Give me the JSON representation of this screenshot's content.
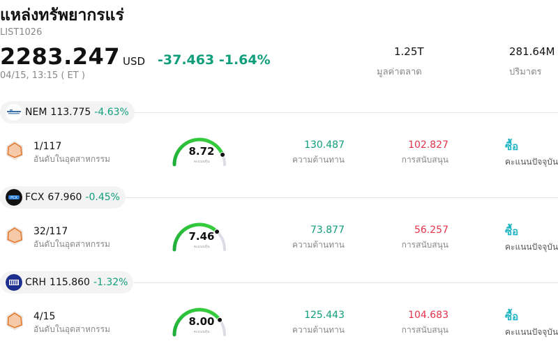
{
  "header": {
    "title": "แหล่งทรัพยากรแร่",
    "code": "LIST1026",
    "price": "2283.247",
    "currency": "USD",
    "change": "-37.463",
    "change_pct": "-1.64%",
    "timestamp": "04/15, 13:15  ( ET )",
    "market_cap_value": "1.25T",
    "market_cap_label": "มูลค่าตลาด",
    "volume_value": "281.64M",
    "volume_label": "ปริมาตร"
  },
  "colors": {
    "up_accent": "#0f9e7b",
    "down_red": "#e5334b",
    "buy_cyan": "#1fb5c4",
    "gauge_green": "#22b43c",
    "gauge_track": "#dcdce6"
  },
  "stocks": [
    {
      "ticker": "NEM",
      "price": "113.775",
      "change": "-4.63%",
      "logo_icon": "newmont-logo-icon",
      "rank": "1/117",
      "rank_label": "อันดับในอุตสาหกรรม",
      "score": "8.72",
      "score_fraction": 0.872,
      "gauge_sub": "คะแนนหุ้น",
      "resistance": "130.487",
      "resistance_label": "ความต้านทาน",
      "support": "102.827",
      "support_label": "การสนับสนุน",
      "action": "ซื้อ",
      "action_label": "คะแนนปัจจุบัน"
    },
    {
      "ticker": "FCX",
      "price": "67.960",
      "change": "-0.45%",
      "logo_icon": "freeport-logo-icon",
      "rank": "32/117",
      "rank_label": "อันดับในอุตสาหกรรม",
      "score": "7.46",
      "score_fraction": 0.746,
      "gauge_sub": "คะแนนหุ้น",
      "resistance": "73.877",
      "resistance_label": "ความต้านทาน",
      "support": "56.257",
      "support_label": "การสนับสนุน",
      "action": "ซื้อ",
      "action_label": "คะแนนปัจจุบัน"
    },
    {
      "ticker": "CRH",
      "price": "115.860",
      "change": "-1.32%",
      "logo_icon": "crh-logo-icon",
      "rank": "4/15",
      "rank_label": "อันดับในอุตสาหกรรม",
      "score": "8.00",
      "score_fraction": 0.8,
      "gauge_sub": "คะแนนหุ้น",
      "resistance": "125.443",
      "resistance_label": "ความต้านทาน",
      "support": "104.683",
      "support_label": "การสนับสนุน",
      "action": "ซื้อ",
      "action_label": "คะแนนปัจจุบัน"
    }
  ]
}
